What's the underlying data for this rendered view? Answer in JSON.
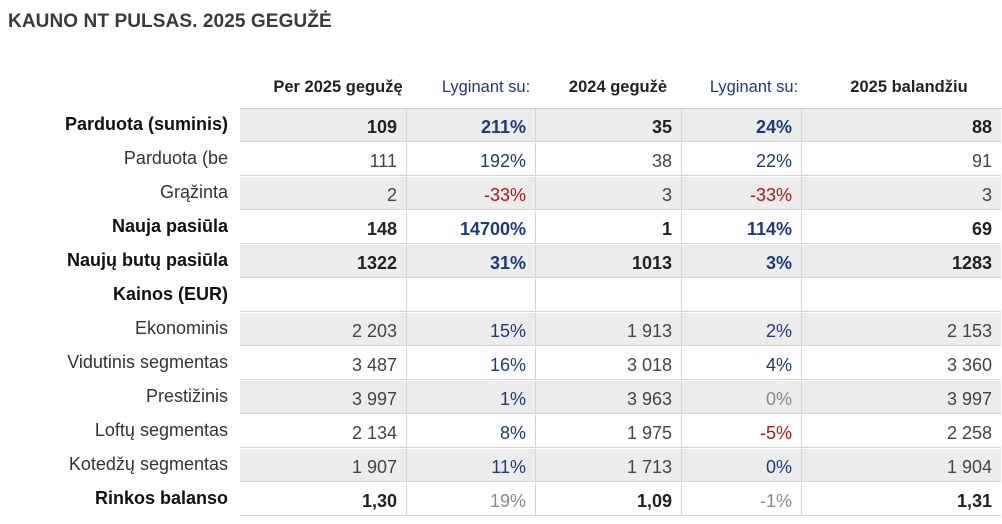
{
  "title": "KAUNO NT PULSAS. 2025 GEGUŽĖ",
  "headers": [
    "Per 2025 gegužę",
    "Lyginant su:",
    "2024 gegužė",
    "Lyginant su:",
    "2025 balandžiu"
  ],
  "rows": [
    {
      "label": "Parduota (suminis)",
      "cells": [
        "109",
        "211%",
        "35",
        "24%",
        "88"
      ]
    },
    {
      "label": "Parduota (be",
      "cells": [
        "111",
        "192%",
        "38",
        "22%",
        "91"
      ]
    },
    {
      "label": "Grąžinta",
      "cells": [
        "2",
        "-33%",
        "3",
        "-33%",
        "3"
      ]
    },
    {
      "label": "Nauja pasiūla",
      "cells": [
        "148",
        "14700%",
        "1",
        "114%",
        "69"
      ]
    },
    {
      "label": "Naujų butų pasiūla",
      "cells": [
        "1322",
        "31%",
        "1013",
        "3%",
        "1283"
      ]
    },
    {
      "label": "Kainos (EUR)",
      "cells": [
        "",
        "",
        "",
        "",
        ""
      ]
    },
    {
      "label": "Ekonominis",
      "cells": [
        "2 203",
        "15%",
        "1 913",
        "2%",
        "2 153"
      ]
    },
    {
      "label": "Vidutinis segmentas",
      "cells": [
        "3 487",
        "16%",
        "3 018",
        "4%",
        "3 360"
      ]
    },
    {
      "label": "Prestižinis",
      "cells": [
        "3 997",
        "1%",
        "3 963",
        "0%",
        "3 997"
      ]
    },
    {
      "label": "Loftų segmentas",
      "cells": [
        "2 134",
        "8%",
        "1 975",
        "-5%",
        "2 258"
      ]
    },
    {
      "label": "Kotedžų segmentas",
      "cells": [
        "1 907",
        "11%",
        "1 713",
        "0%",
        "1 904"
      ]
    },
    {
      "label": "Rinkos balanso",
      "cells": [
        "1,30",
        "19%",
        "1,09",
        "-1%",
        "1,31"
      ]
    }
  ]
}
